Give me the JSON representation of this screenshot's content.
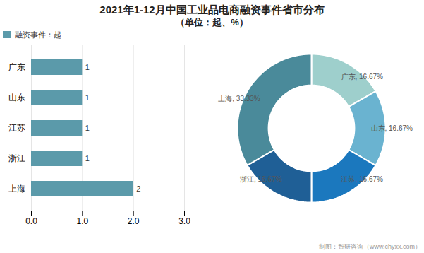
{
  "title": "2021年1-12月中国工业品电商融资事件省市分布",
  "subtitle": "（单位：起、%）",
  "annotations": [
    "制图：智研咨询（www.chyxx.com）"
  ],
  "chart_data": [
    {
      "type": "bar",
      "orientation": "horizontal",
      "categories": [
        "上海",
        "浙江",
        "江苏",
        "山东",
        "广东"
      ],
      "series": [
        {
          "name": "融资事件：起",
          "color": "#5b9aaa",
          "values": [
            2,
            1,
            1,
            1,
            1
          ]
        }
      ],
      "xlim": [
        0,
        3
      ],
      "xticks": [
        0,
        1,
        2,
        3
      ],
      "grid": true,
      "legend": "top-left",
      "data_labels": true
    },
    {
      "type": "donut",
      "categories": [
        "广东",
        "山东",
        "江苏",
        "浙江",
        "上海"
      ],
      "values": [
        16.67,
        16.67,
        16.67,
        16.67,
        33.33
      ],
      "value_labels": [
        "16.67%",
        "16.67%",
        "16.67%",
        "16.67%",
        "33.33%"
      ],
      "colors": [
        "#9ecfcc",
        "#6ab3d0",
        "#1b78be",
        "#1f5f96",
        "#4a8a9a"
      ],
      "data_labels": true
    }
  ]
}
